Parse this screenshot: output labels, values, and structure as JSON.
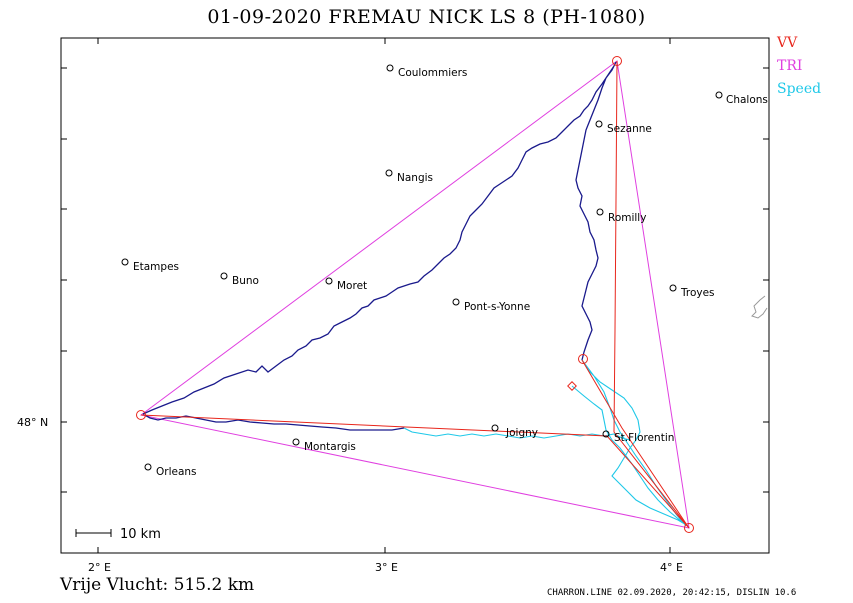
{
  "header": {
    "title": "01-09-2020    FREMAU NICK    LS 8 (PH-1080)"
  },
  "legend": [
    {
      "label": "VV",
      "color": "#e8261c"
    },
    {
      "label": "TRI",
      "color": "#e040e0"
    },
    {
      "label": "Speed",
      "color": "#1ec8e8"
    }
  ],
  "axes": {
    "x_ticks": [
      "2° E",
      "3° E",
      "4° E"
    ],
    "y_ticks": [
      "48° N"
    ]
  },
  "scale_bar": {
    "label": "10 km"
  },
  "places": [
    {
      "name": "Coulommiers"
    },
    {
      "name": "Chalons"
    },
    {
      "name": "Sezanne"
    },
    {
      "name": "Nangis"
    },
    {
      "name": "Romilly"
    },
    {
      "name": "Etampes"
    },
    {
      "name": "Buno"
    },
    {
      "name": "Moret"
    },
    {
      "name": "Troyes"
    },
    {
      "name": "Pont-s-Yonne"
    },
    {
      "name": "Joigny"
    },
    {
      "name": "St.Florentin"
    },
    {
      "name": "Montargis"
    },
    {
      "name": "Orleans"
    }
  ],
  "summary": {
    "score": "Vrije Vlucht:  515.2 km"
  },
  "footer": {
    "text": "CHARRON.LINE 02.09.2020, 20:42:15, DISLIN 10.6"
  }
}
